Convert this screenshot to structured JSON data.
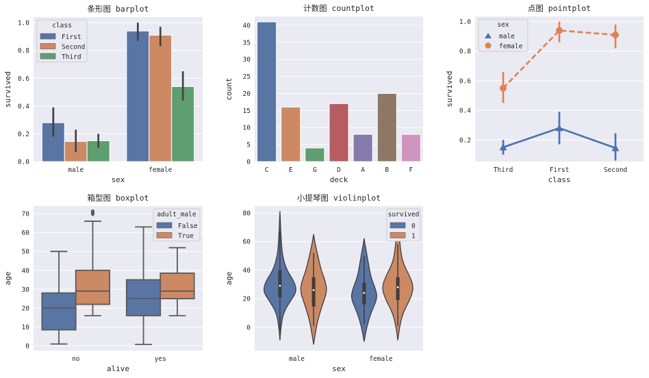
{
  "colors": {
    "blue": "#5975a4",
    "orange": "#cc8963",
    "green": "#5f9e6e",
    "red": "#b55d60",
    "purple": "#857aab",
    "brown": "#8d7866",
    "pink": "#d095bf",
    "line_blue": "#4c72b0",
    "line_orange": "#dd8452",
    "face": "#eaeaf2",
    "err": "#424242",
    "box_edge": "#5a5a5a"
  },
  "chart_data": [
    {
      "type": "bar",
      "title": "条形图 barplot",
      "xlabel": "sex",
      "ylabel": "survived",
      "ylim": [
        0,
        1.04
      ],
      "grid": true,
      "categories": [
        "male",
        "female"
      ],
      "yticks": [
        "0.0",
        "0.2",
        "0.4",
        "0.6",
        "0.8",
        "1.0"
      ],
      "legend": {
        "title": "class",
        "placement": "upper-left",
        "entries": [
          "First",
          "Second",
          "Third"
        ]
      },
      "series": [
        {
          "name": "First",
          "values": [
            0.28,
            0.94
          ],
          "ci": [
            [
              0.18,
              0.39
            ],
            [
              0.87,
              1.0
            ]
          ]
        },
        {
          "name": "Second",
          "values": [
            0.145,
            0.91
          ],
          "ci": [
            [
              0.07,
              0.23
            ],
            [
              0.83,
              0.97
            ]
          ]
        },
        {
          "name": "Third",
          "values": [
            0.15,
            0.54
          ],
          "ci": [
            [
              0.1,
              0.2
            ],
            [
              0.44,
              0.65
            ]
          ]
        }
      ]
    },
    {
      "type": "bar",
      "title": "计数图 countplot",
      "xlabel": "deck",
      "ylabel": "count",
      "ylim": [
        0,
        42.6
      ],
      "grid": true,
      "categories": [
        "C",
        "E",
        "G",
        "D",
        "A",
        "B",
        "F"
      ],
      "values": [
        41,
        16,
        4,
        17,
        8,
        20,
        8
      ],
      "yticks": [
        "0",
        "5",
        "10",
        "15",
        "20",
        "25",
        "30",
        "35",
        "40"
      ]
    },
    {
      "type": "line",
      "title": "点图 pointplot",
      "xlabel": "class",
      "ylabel": "survived",
      "ylim": [
        0.053,
        1.035
      ],
      "grid": true,
      "categories": [
        "Third",
        "First",
        "Second"
      ],
      "yticks": [
        "0.2",
        "0.4",
        "0.6",
        "0.8",
        "1.0"
      ],
      "legend": {
        "title": "sex",
        "placement": "upper-left",
        "entries": [
          "male",
          "female"
        ]
      },
      "series": [
        {
          "name": "male",
          "marker": "triangle",
          "linestyle": "solid",
          "values": [
            0.15,
            0.28,
            0.145
          ],
          "ci": [
            [
              0.1,
              0.2
            ],
            [
              0.17,
              0.39
            ],
            [
              0.06,
              0.245
            ]
          ]
        },
        {
          "name": "female",
          "marker": "circle",
          "linestyle": "dashed",
          "values": [
            0.55,
            0.94,
            0.91
          ],
          "ci": [
            [
              0.45,
              0.66
            ],
            [
              0.86,
              1.0
            ],
            [
              0.82,
              0.98
            ]
          ]
        }
      ]
    },
    {
      "type": "box",
      "title": "箱型图 boxplot",
      "xlabel": "alive",
      "ylabel": "age",
      "ylim": [
        -2.5,
        74
      ],
      "grid": true,
      "categories": [
        "no",
        "yes"
      ],
      "yticks": [
        "0",
        "10",
        "20",
        "30",
        "40",
        "50",
        "60",
        "70"
      ],
      "legend": {
        "title": "adult_male",
        "placement": "upper-right",
        "entries": [
          "False",
          "True"
        ]
      },
      "series": [
        {
          "name": "False",
          "boxes": [
            {
              "whislo": 1,
              "q1": 8.5,
              "med": 20,
              "q3": 28,
              "whishi": 50,
              "fliers": []
            },
            {
              "whislo": 0.75,
              "q1": 16,
              "med": 25,
              "q3": 35,
              "whishi": 63,
              "fliers": []
            }
          ]
        },
        {
          "name": "True",
          "boxes": [
            {
              "whislo": 16,
              "q1": 22,
              "med": 29,
              "q3": 40,
              "whishi": 66,
              "fliers": [
                70,
                70.5,
                71
              ]
            },
            {
              "whislo": 16,
              "q1": 25,
              "med": 29,
              "q3": 38.5,
              "whishi": 52,
              "fliers": []
            }
          ]
        }
      ]
    },
    {
      "type": "violin",
      "title": "小提琴图 violinplot",
      "xlabel": "sex",
      "ylabel": "age",
      "ylim": [
        -16.4,
        84.8
      ],
      "grid": true,
      "categories": [
        "male",
        "female"
      ],
      "yticks": [
        "0",
        "20",
        "40",
        "60",
        "80"
      ],
      "legend": {
        "title": "survived",
        "placement": "upper-right",
        "entries": [
          "0",
          "1"
        ]
      },
      "series": [
        {
          "name": "0",
          "violins": [
            {
              "q1": 21,
              "med": 29,
              "q3": 40,
              "whislo": -2,
              "whishi": 67,
              "density": [
                [
                  -9,
                  0
                ],
                [
                  0,
                  0.06
                ],
                [
                  10,
                  0.2
                ],
                [
                  18,
                  0.6
                ],
                [
                  25,
                  1
                ],
                [
                  32,
                  0.85
                ],
                [
                  40,
                  0.4
                ],
                [
                  50,
                  0.15
                ],
                [
                  60,
                  0.08
                ],
                [
                  70,
                  0.04
                ],
                [
                  81,
                  0
                ]
              ]
            },
            {
              "q1": 16,
              "med": 24,
              "q3": 31,
              "whislo": 2,
              "whishi": 50,
              "density": [
                [
                  -10,
                  0
                ],
                [
                  0,
                  0.15
                ],
                [
                  10,
                  0.4
                ],
                [
                  20,
                  0.78
                ],
                [
                  26,
                  0.7
                ],
                [
                  35,
                  0.4
                ],
                [
                  45,
                  0.25
                ],
                [
                  55,
                  0.1
                ],
                [
                  62,
                  0
                ]
              ]
            }
          ]
        },
        {
          "name": "1",
          "violins": [
            {
              "q1": 14.5,
              "med": 26,
              "q3": 35,
              "whislo": 1,
              "whishi": 52,
              "density": [
                [
                  -12,
                  0
                ],
                [
                  -3,
                  0.12
                ],
                [
                  5,
                  0.25
                ],
                [
                  15,
                  0.5
                ],
                [
                  25,
                  0.8
                ],
                [
                  32,
                  0.7
                ],
                [
                  40,
                  0.45
                ],
                [
                  50,
                  0.25
                ],
                [
                  58,
                  0.1
                ],
                [
                  65,
                  0
                ]
              ]
            },
            {
              "q1": 19,
              "med": 28,
              "q3": 35,
              "whislo": 1,
              "whishi": 58,
              "density": [
                [
                  -9,
                  0
                ],
                [
                  0,
                  0.1
                ],
                [
                  10,
                  0.3
                ],
                [
                  20,
                  0.75
                ],
                [
                  28,
                  0.95
                ],
                [
                  36,
                  0.7
                ],
                [
                  45,
                  0.3
                ],
                [
                  55,
                  0.15
                ],
                [
                  65,
                  0.08
                ],
                [
                  72,
                  0
                ]
              ]
            }
          ]
        }
      ]
    }
  ]
}
